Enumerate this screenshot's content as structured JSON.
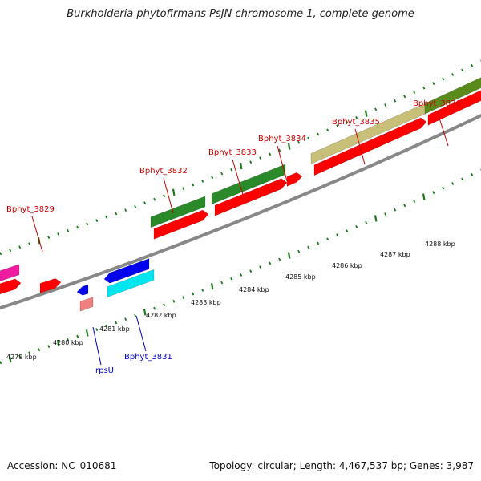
{
  "title": "Burkholderia phytofirmans PsJN chromosome 1, complete genome",
  "footer": {
    "accession": "Accession: NC_010681",
    "summary": "Topology: circular; Length: 4,467,537 bp; Genes: 3,987"
  },
  "colors": {
    "backbone": "#888888",
    "tick": "#1a7a1a",
    "forward_label": "#cc0000",
    "reverse_label": "#0000cc",
    "cds_red": "#ff0000",
    "cds_green": "#2a8a2a",
    "cds_olive": "#5a8a1a",
    "cds_khaki": "#c8c078",
    "cds_blue": "#0000ee",
    "cds_cyan": "#00e5ee",
    "cds_magenta": "#ee1ca0",
    "cds_pink": "#f08080"
  },
  "scale_labels": [
    "4279 kbp",
    "4280 kbp",
    "4281 kbp",
    "4282 kbp",
    "4283 kbp",
    "4284 kbp",
    "4285 kbp",
    "4286 kbp",
    "4287 kbp",
    "4288 kbp"
  ],
  "gene_labels_forward": [
    "Bphyt_3829",
    "Bphyt_3832",
    "Bphyt_3833",
    "Bphyt_3834",
    "Bphyt_3835",
    "Bphyt_3836"
  ],
  "gene_labels_reverse": [
    "rpsU",
    "Bphyt_3831"
  ]
}
